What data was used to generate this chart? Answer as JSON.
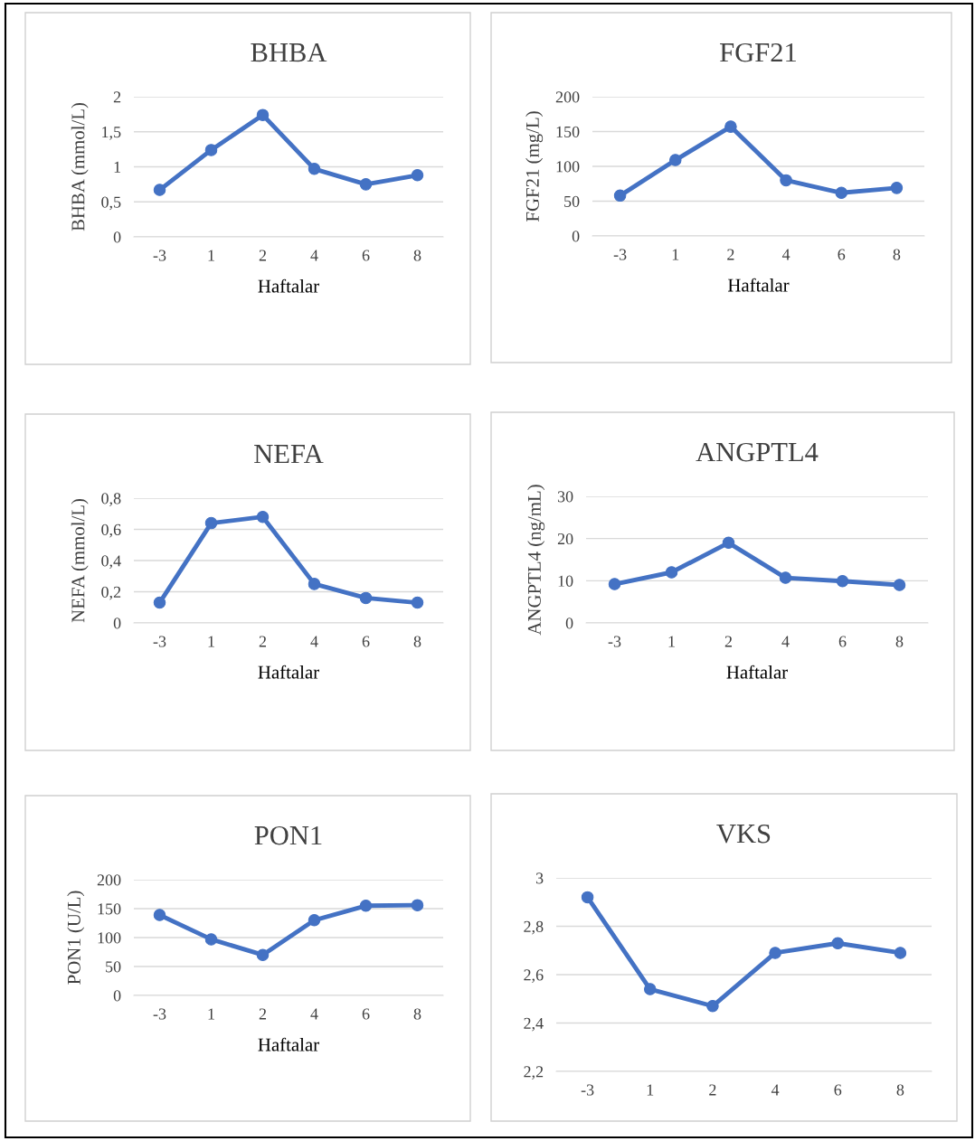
{
  "chart_data": [
    {
      "type": "line",
      "title": "BHBA",
      "xlabel": "Haftalar",
      "ylabel": "BHBA (mmol/L)",
      "categories": [
        "-3",
        "1",
        "2",
        "4",
        "6",
        "8"
      ],
      "values": [
        0.67,
        1.24,
        1.74,
        0.97,
        0.75,
        0.88
      ],
      "color": "#4472c4",
      "marker": "circle",
      "grid": "y",
      "ylim": [
        0,
        2
      ],
      "yticks": [
        0,
        {
          "value": 0.5,
          "label": "0,5"
        },
        1,
        {
          "value": 1.5,
          "label": "1,5"
        },
        2
      ]
    },
    {
      "type": "line",
      "title": "FGF21",
      "xlabel": "Haftalar",
      "ylabel": "FGF21 (mg/L)",
      "categories": [
        "-3",
        "1",
        "2",
        "4",
        "6",
        "8"
      ],
      "values": [
        58,
        109,
        157,
        80,
        62,
        69
      ],
      "color": "#4472c4",
      "marker": "circle",
      "grid": "y",
      "ylim": [
        0,
        200
      ],
      "yticks": [
        0,
        50,
        100,
        150,
        200
      ]
    },
    {
      "type": "line",
      "title": "NEFA",
      "xlabel": "Haftalar",
      "ylabel": "NEFA (mmol/L)",
      "categories": [
        "-3",
        "1",
        "2",
        "4",
        "6",
        "8"
      ],
      "values": [
        0.13,
        0.64,
        0.68,
        0.25,
        0.16,
        0.13
      ],
      "color": "#4472c4",
      "marker": "circle",
      "grid": "y",
      "ylim": [
        0,
        0.8
      ],
      "yticks": [
        0,
        {
          "value": 0.2,
          "label": "0,2"
        },
        {
          "value": 0.4,
          "label": "0,4"
        },
        {
          "value": 0.6,
          "label": "0,6"
        },
        {
          "value": 0.8,
          "label": "0,8"
        }
      ]
    },
    {
      "type": "line",
      "title": "ANGPTL4",
      "xlabel": "Haftalar",
      "ylabel": "ANGPTL4 (ng/mL)",
      "categories": [
        "-3",
        "1",
        "2",
        "4",
        "6",
        "8"
      ],
      "values": [
        9.2,
        12,
        19,
        10.7,
        9.9,
        9
      ],
      "color": "#4472c4",
      "marker": "circle",
      "grid": "y",
      "ylim": [
        0,
        30
      ],
      "yticks": [
        0,
        10,
        20,
        30
      ]
    },
    {
      "type": "line",
      "title": "PON1",
      "xlabel": "Haftalar",
      "ylabel": "PON1 (U/L)",
      "categories": [
        "-3",
        "1",
        "2",
        "4",
        "6",
        "8"
      ],
      "values": [
        139,
        97,
        70,
        130,
        155,
        156
      ],
      "color": "#4472c4",
      "marker": "circle",
      "grid": "y",
      "ylim": [
        0,
        200
      ],
      "yticks": [
        0,
        50,
        100,
        150,
        200
      ]
    },
    {
      "type": "line",
      "title": "VKS",
      "categories": [
        "-3",
        "1",
        "2",
        "4",
        "6",
        "8"
      ],
      "values": [
        2.92,
        2.54,
        2.47,
        2.69,
        2.73,
        2.69
      ],
      "color": "#4472c4",
      "marker": "circle",
      "grid": "y",
      "ylim": [
        2.2,
        3
      ],
      "yticks": [
        {
          "value": 2.2,
          "label": "2,2"
        },
        {
          "value": 2.4,
          "label": "2,4"
        },
        {
          "value": 2.6,
          "label": "2,6"
        },
        {
          "value": 2.8,
          "label": "2,8"
        },
        3
      ]
    }
  ]
}
